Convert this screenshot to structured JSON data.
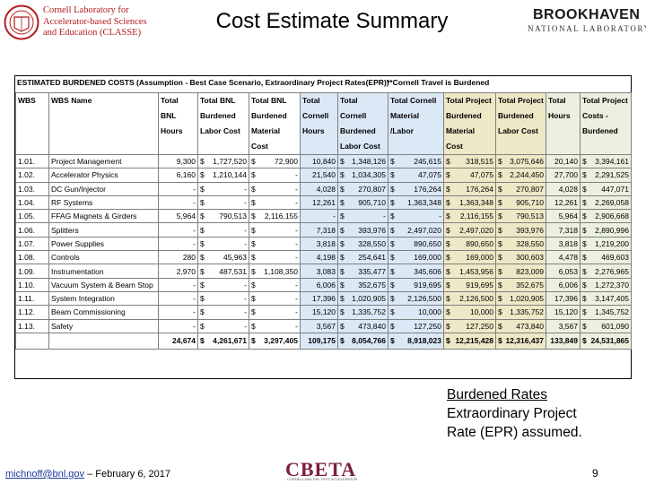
{
  "header": {
    "classe_lines": [
      "Cornell Laboratory for",
      "Accelerator-based Sciences",
      "and Education (CLASSE)"
    ],
    "title": "Cost Estimate Summary",
    "bnl_name": "BROOKHAVEN",
    "bnl_sub": "NATIONAL LABORATORY"
  },
  "table": {
    "caption": "ESTIMATED BURDENED COSTS (Assumption - Best Case Scenario, Extraordinary Project Rates(EPR))",
    "caption_note": "**Cornell Travel is Burdened",
    "headers": [
      "WBS",
      "WBS Name",
      "Total BNL Hours",
      "Total BNL Burdened Labor Cost",
      "Total BNL Burdened Material Cost",
      "Total Cornell Hours",
      "Total Cornell Burdened Labor Cost",
      "Total Cornell Material /Labor",
      "Total Project Burdened Material Cost",
      "Total Project Burdened Labor Cost",
      "Total Hours",
      "Total Project Costs - Burdened"
    ],
    "rows": [
      {
        "wbs": "1.01.",
        "name": "Project Management",
        "bnl_hours": "9,300",
        "bnl_labor": "1,727,520",
        "bnl_material": "72,900",
        "cornell_hours": "10,840",
        "cornell_labor": "1,348,126",
        "cornell_material": "245,615",
        "proj_material": "318,515",
        "proj_labor": "3,075,646",
        "total_hours": "20,140",
        "total_cost": "3,394,161"
      },
      {
        "wbs": "1.02.",
        "name": "Accelerator Physics",
        "bnl_hours": "6,160",
        "bnl_labor": "1,210,144",
        "bnl_material": "-",
        "cornell_hours": "21,540",
        "cornell_labor": "1,034,305",
        "cornell_material": "47,075",
        "proj_material": "47,075",
        "proj_labor": "2,244,450",
        "total_hours": "27,700",
        "total_cost": "2,291,525"
      },
      {
        "wbs": "1.03.",
        "name": "DC Gun/Injector",
        "bnl_hours": "-",
        "bnl_labor": "-",
        "bnl_material": "-",
        "cornell_hours": "4,028",
        "cornell_labor": "270,807",
        "cornell_material": "176,264",
        "proj_material": "176,264",
        "proj_labor": "270,807",
        "total_hours": "4,028",
        "total_cost": "447,071"
      },
      {
        "wbs": "1.04.",
        "name": "RF Systems",
        "bnl_hours": "-",
        "bnl_labor": "-",
        "bnl_material": "-",
        "cornell_hours": "12,261",
        "cornell_labor": "905,710",
        "cornell_material": "1,363,348",
        "proj_material": "1,363,348",
        "proj_labor": "905,710",
        "total_hours": "12,261",
        "total_cost": "2,269,058"
      },
      {
        "wbs": "1.05.",
        "name": "FFAG Magnets & Girders",
        "bnl_hours": "5,964",
        "bnl_labor": "790,513",
        "bnl_material": "2,116,155",
        "cornell_hours": "-",
        "cornell_labor": "-",
        "cornell_material": "-",
        "proj_material": "2,116,155",
        "proj_labor": "790,513",
        "total_hours": "5,964",
        "total_cost": "2,906,668"
      },
      {
        "wbs": "1.06.",
        "name": "Splitters",
        "bnl_hours": "-",
        "bnl_labor": "-",
        "bnl_material": "-",
        "cornell_hours": "7,318",
        "cornell_labor": "393,976",
        "cornell_material": "2,497,020",
        "proj_material": "2,497,020",
        "proj_labor": "393,976",
        "total_hours": "7,318",
        "total_cost": "2,890,996"
      },
      {
        "wbs": "1.07.",
        "name": "Power Supplies",
        "bnl_hours": "-",
        "bnl_labor": "-",
        "bnl_material": "-",
        "cornell_hours": "3,818",
        "cornell_labor": "328,550",
        "cornell_material": "890,650",
        "proj_material": "890,650",
        "proj_labor": "328,550",
        "total_hours": "3,818",
        "total_cost": "1,219,200"
      },
      {
        "wbs": "1.08.",
        "name": "Controls",
        "bnl_hours": "280",
        "bnl_labor": "45,963",
        "bnl_material": "-",
        "cornell_hours": "4,198",
        "cornell_labor": "254,641",
        "cornell_material": "169,000",
        "proj_material": "169,000",
        "proj_labor": "300,603",
        "total_hours": "4,478",
        "total_cost": "469,603"
      },
      {
        "wbs": "1.09.",
        "name": "Instrumentation",
        "bnl_hours": "2,970",
        "bnl_labor": "487,531",
        "bnl_material": "1,108,350",
        "cornell_hours": "3,083",
        "cornell_labor": "335,477",
        "cornell_material": "345,606",
        "proj_material": "1,453,956",
        "proj_labor": "823,009",
        "total_hours": "6,053",
        "total_cost": "2,276,965"
      },
      {
        "wbs": "1.10.",
        "name": "Vacuum System & Beam Stop",
        "bnl_hours": "-",
        "bnl_labor": "-",
        "bnl_material": "-",
        "cornell_hours": "6,006",
        "cornell_labor": "352,675",
        "cornell_material": "919,695",
        "proj_material": "919,695",
        "proj_labor": "352,675",
        "total_hours": "6,006",
        "total_cost": "1,272,370"
      },
      {
        "wbs": "1.11.",
        "name": "System Integration",
        "bnl_hours": "-",
        "bnl_labor": "-",
        "bnl_material": "-",
        "cornell_hours": "17,396",
        "cornell_labor": "1,020,905",
        "cornell_material": "2,126,500",
        "proj_material": "2,126,500",
        "proj_labor": "1,020,905",
        "total_hours": "17,396",
        "total_cost": "3,147,405"
      },
      {
        "wbs": "1.12.",
        "name": "Beam Commissioning",
        "bnl_hours": "-",
        "bnl_labor": "-",
        "bnl_material": "-",
        "cornell_hours": "15,120",
        "cornell_labor": "1,335,752",
        "cornell_material": "10,000",
        "proj_material": "10,000",
        "proj_labor": "1,335,752",
        "total_hours": "15,120",
        "total_cost": "1,345,752"
      },
      {
        "wbs": "1.13.",
        "name": "Safety",
        "bnl_hours": "-",
        "bnl_labor": "-",
        "bnl_material": "-",
        "cornell_hours": "3,567",
        "cornell_labor": "473,840",
        "cornell_material": "127,250",
        "proj_material": "127,250",
        "proj_labor": "473,840",
        "total_hours": "3,567",
        "total_cost": "601,090"
      }
    ],
    "totals": {
      "bnl_hours": "24,674",
      "bnl_labor": "4,261,671",
      "bnl_material": "3,297,405",
      "cornell_hours": "109,175",
      "cornell_labor": "8,054,766",
      "cornell_material": "8,918,023",
      "proj_material": "12,215,428",
      "proj_labor": "12,316,437",
      "total_hours": "133,849",
      "total_cost": "24,531,865"
    },
    "currency": "$"
  },
  "note": {
    "line1": "Burdened Rates",
    "line2": "Extraordinary Project",
    "line3": "Rate (EPR) assumed."
  },
  "footer": {
    "email": "michnoff@bnl.gov",
    "date_text": " – February 6, 2017",
    "cbeta": "CBETA",
    "cbeta_sub": "CORNELL-BNL ERL TEST ACCELERATOR",
    "page": "9"
  }
}
